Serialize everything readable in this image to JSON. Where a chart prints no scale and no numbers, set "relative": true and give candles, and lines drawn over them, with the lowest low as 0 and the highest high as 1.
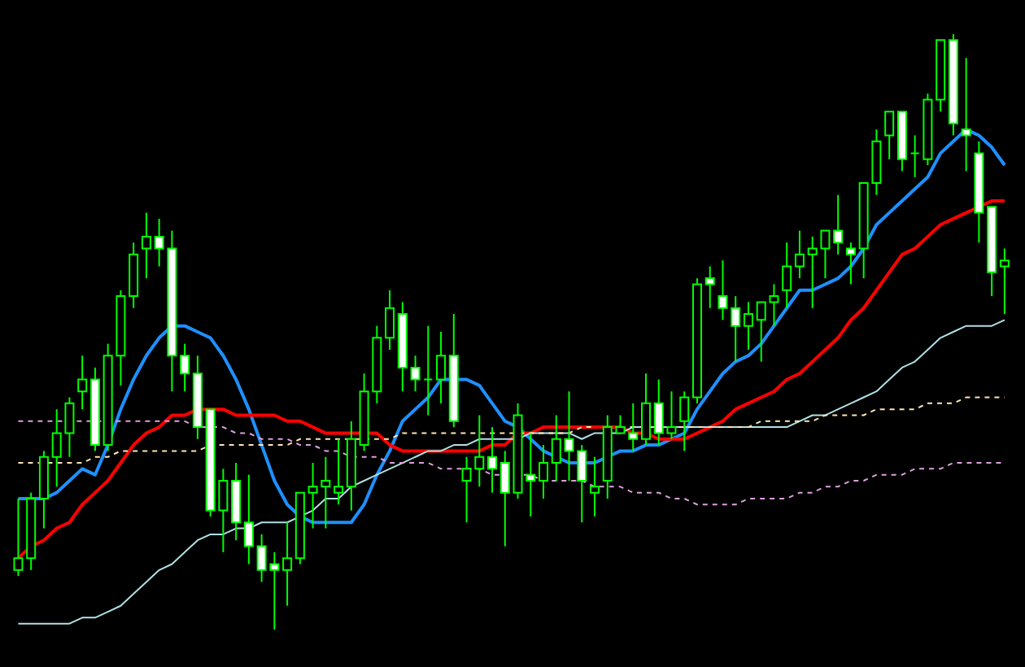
{
  "chart_data": {
    "type": "candlestick",
    "relative": true,
    "color": "#00ff00",
    "categories": [
      null,
      null,
      null,
      null,
      null,
      null,
      null,
      null,
      null,
      null,
      null,
      null,
      null,
      null,
      null,
      null,
      null,
      null,
      null,
      null,
      null,
      null,
      null,
      null,
      null,
      null,
      null,
      null,
      null,
      null,
      null,
      null,
      null,
      null,
      null,
      null,
      null,
      null,
      null,
      null,
      null,
      null,
      null,
      null,
      null,
      null,
      null,
      null,
      null,
      null,
      null,
      null,
      null,
      null,
      null,
      null,
      null,
      null,
      null,
      null,
      null,
      null,
      null,
      null,
      null,
      null,
      null,
      null,
      null,
      null,
      null,
      null,
      null,
      null,
      null,
      null,
      null,
      null
    ],
    "ohlc": [
      [
        0.1,
        0.22,
        0.09,
        0.12
      ],
      [
        0.12,
        0.23,
        0.1,
        0.22
      ],
      [
        0.22,
        0.3,
        0.17,
        0.29
      ],
      [
        0.29,
        0.37,
        0.24,
        0.33
      ],
      [
        0.33,
        0.39,
        0.29,
        0.38
      ],
      [
        0.4,
        0.46,
        0.37,
        0.42
      ],
      [
        0.42,
        0.44,
        0.3,
        0.31
      ],
      [
        0.31,
        0.48,
        0.3,
        0.46
      ],
      [
        0.46,
        0.57,
        0.41,
        0.56
      ],
      [
        0.56,
        0.65,
        0.54,
        0.63
      ],
      [
        0.64,
        0.7,
        0.59,
        0.66
      ],
      [
        0.66,
        0.69,
        0.61,
        0.64
      ],
      [
        0.64,
        0.67,
        0.4,
        0.46
      ],
      [
        0.46,
        0.48,
        0.4,
        0.43
      ],
      [
        0.43,
        0.46,
        0.32,
        0.34
      ],
      [
        0.37,
        0.37,
        0.19,
        0.2
      ],
      [
        0.2,
        0.27,
        0.13,
        0.25
      ],
      [
        0.25,
        0.28,
        0.15,
        0.18
      ],
      [
        0.18,
        0.26,
        0.11,
        0.14
      ],
      [
        0.14,
        0.16,
        0.08,
        0.1
      ],
      [
        0.11,
        0.13,
        0,
        0.1
      ],
      [
        0.1,
        0.18,
        0.04,
        0.12
      ],
      [
        0.12,
        0.23,
        0.11,
        0.23
      ],
      [
        0.23,
        0.28,
        0.17,
        0.24
      ],
      [
        0.24,
        0.29,
        0.17,
        0.25
      ],
      [
        0.23,
        0.32,
        0.21,
        0.24
      ],
      [
        0.24,
        0.35,
        0.2,
        0.32
      ],
      [
        0.31,
        0.43,
        0.3,
        0.4
      ],
      [
        0.4,
        0.51,
        0.38,
        0.49
      ],
      [
        0.49,
        0.57,
        0.47,
        0.54
      ],
      [
        0.53,
        0.55,
        0.4,
        0.44
      ],
      [
        0.44,
        0.46,
        0.4,
        0.42
      ],
      [
        0.42,
        0.51,
        0.36,
        0.42
      ],
      [
        0.42,
        0.5,
        0.38,
        0.46
      ],
      [
        0.46,
        0.53,
        0.34,
        0.35
      ],
      [
        0.25,
        0.29,
        0.18,
        0.27
      ],
      [
        0.27,
        0.36,
        0.24,
        0.29
      ],
      [
        0.29,
        0.34,
        0.23,
        0.27
      ],
      [
        0.28,
        0.3,
        0.14,
        0.23
      ],
      [
        0.23,
        0.38,
        0.22,
        0.36
      ],
      [
        0.26,
        0.33,
        0.19,
        0.25
      ],
      [
        0.25,
        0.31,
        0.22,
        0.28
      ],
      [
        0.28,
        0.36,
        0.25,
        0.32
      ],
      [
        0.32,
        0.4,
        0.25,
        0.3
      ],
      [
        0.3,
        0.31,
        0.18,
        0.25
      ],
      [
        0.23,
        0.29,
        0.19,
        0.24
      ],
      [
        0.25,
        0.36,
        0.22,
        0.34
      ],
      [
        0.33,
        0.36,
        0.33,
        0.34
      ],
      [
        0.33,
        0.38,
        0.3,
        0.32
      ],
      [
        0.32,
        0.43,
        0.31,
        0.38
      ],
      [
        0.38,
        0.42,
        0.31,
        0.33
      ],
      [
        0.33,
        0.4,
        0.32,
        0.34
      ],
      [
        0.35,
        0.4,
        0.3,
        0.39
      ],
      [
        0.39,
        0.59,
        0.38,
        0.58
      ],
      [
        0.59,
        0.61,
        0.54,
        0.58
      ],
      [
        0.56,
        0.62,
        0.52,
        0.54
      ],
      [
        0.54,
        0.56,
        0.45,
        0.51
      ],
      [
        0.51,
        0.55,
        0.47,
        0.53
      ],
      [
        0.52,
        0.55,
        0.45,
        0.55
      ],
      [
        0.55,
        0.58,
        0.51,
        0.56
      ],
      [
        0.57,
        0.65,
        0.54,
        0.61
      ],
      [
        0.61,
        0.67,
        0.59,
        0.63
      ],
      [
        0.63,
        0.66,
        0.54,
        0.64
      ],
      [
        0.64,
        0.67,
        0.59,
        0.67
      ],
      [
        0.67,
        0.73,
        0.63,
        0.65
      ],
      [
        0.64,
        0.65,
        0.58,
        0.63
      ],
      [
        0.64,
        0.75,
        0.59,
        0.75
      ],
      [
        0.75,
        0.84,
        0.73,
        0.82
      ],
      [
        0.83,
        0.87,
        0.79,
        0.87
      ],
      [
        0.87,
        0.87,
        0.77,
        0.79
      ],
      [
        0.8,
        0.83,
        0.76,
        0.8
      ],
      [
        0.79,
        0.9,
        0.78,
        0.89
      ],
      [
        0.89,
        0.99,
        0.87,
        0.99
      ],
      [
        0.99,
        1,
        0.83,
        0.85
      ],
      [
        0.84,
        0.96,
        0.77,
        0.83
      ],
      [
        0.8,
        0.82,
        0.65,
        0.7
      ],
      [
        0.71,
        0.71,
        0.56,
        0.6
      ],
      [
        0.61,
        0.64,
        0.53,
        0.62
      ]
    ],
    "series": [
      {
        "type": "line",
        "color": "#1e90ff",
        "line_style": "solid",
        "values": [
          0.22,
          0.22,
          0.22,
          0.23,
          0.25,
          0.27,
          0.26,
          0.31,
          0.37,
          0.42,
          0.46,
          0.49,
          0.51,
          0.51,
          0.5,
          0.49,
          0.46,
          0.42,
          0.37,
          0.31,
          0.25,
          0.21,
          0.19,
          0.18,
          0.18,
          0.18,
          0.18,
          0.21,
          0.26,
          0.3,
          0.35,
          0.37,
          0.39,
          0.42,
          0.42,
          0.42,
          0.41,
          0.38,
          0.35,
          0.34,
          0.32,
          0.3,
          0.29,
          0.28,
          0.28,
          0.28,
          0.29,
          0.3,
          0.3,
          0.31,
          0.31,
          0.32,
          0.33,
          0.37,
          0.4,
          0.43,
          0.45,
          0.46,
          0.48,
          0.51,
          0.54,
          0.57,
          0.57,
          0.58,
          0.59,
          0.61,
          0.64,
          0.68,
          0.7,
          0.72,
          0.74,
          0.76,
          0.8,
          0.82,
          0.84,
          0.83,
          0.81,
          0.78
        ]
      },
      {
        "type": "line",
        "color": "#ff0000",
        "line_style": "solid",
        "values": [
          0.12,
          0.14,
          0.15,
          0.17,
          0.18,
          0.21,
          0.23,
          0.25,
          0.28,
          0.31,
          0.33,
          0.34,
          0.36,
          0.36,
          0.37,
          0.37,
          0.37,
          0.36,
          0.36,
          0.36,
          0.36,
          0.35,
          0.35,
          0.34,
          0.33,
          0.33,
          0.33,
          0.33,
          0.33,
          0.31,
          0.3,
          0.3,
          0.3,
          0.3,
          0.3,
          0.3,
          0.3,
          0.31,
          0.31,
          0.33,
          0.33,
          0.34,
          0.34,
          0.34,
          0.34,
          0.34,
          0.34,
          0.34,
          0.33,
          0.33,
          0.32,
          0.32,
          0.32,
          0.33,
          0.34,
          0.35,
          0.37,
          0.38,
          0.39,
          0.4,
          0.42,
          0.43,
          0.45,
          0.47,
          0.49,
          0.52,
          0.54,
          0.57,
          0.6,
          0.63,
          0.64,
          0.66,
          0.68,
          0.69,
          0.7,
          0.71,
          0.72,
          0.72
        ]
      },
      {
        "type": "line",
        "color": "#b0e0e6",
        "line_style": "solid",
        "values": [
          0.01,
          0.01,
          0.01,
          0.01,
          0.01,
          0.02,
          0.02,
          0.03,
          0.04,
          0.06,
          0.08,
          0.1,
          0.11,
          0.13,
          0.15,
          0.16,
          0.16,
          0.17,
          0.17,
          0.18,
          0.18,
          0.18,
          0.19,
          0.2,
          0.22,
          0.22,
          0.24,
          0.25,
          0.26,
          0.27,
          0.28,
          0.29,
          0.3,
          0.3,
          0.31,
          0.31,
          0.32,
          0.32,
          0.32,
          0.32,
          0.33,
          0.33,
          0.33,
          0.33,
          0.32,
          0.33,
          0.33,
          0.33,
          0.34,
          0.34,
          0.34,
          0.34,
          0.34,
          0.34,
          0.34,
          0.34,
          0.34,
          0.34,
          0.34,
          0.34,
          0.34,
          0.35,
          0.36,
          0.36,
          0.37,
          0.38,
          0.39,
          0.4,
          0.42,
          0.44,
          0.45,
          0.47,
          0.49,
          0.5,
          0.51,
          0.51,
          0.51,
          0.52
        ]
      },
      {
        "type": "line",
        "color": "#ffe4b5",
        "line_style": "dashed",
        "values": [
          0.28,
          0.28,
          0.28,
          0.28,
          0.28,
          0.28,
          0.29,
          0.29,
          0.3,
          0.3,
          0.3,
          0.3,
          0.3,
          0.3,
          0.3,
          0.31,
          0.31,
          0.31,
          0.31,
          0.31,
          0.31,
          0.31,
          0.32,
          0.32,
          0.32,
          0.32,
          0.32,
          0.32,
          0.32,
          0.32,
          0.33,
          0.33,
          0.33,
          0.33,
          0.33,
          0.33,
          0.33,
          0.33,
          0.33,
          0.33,
          0.33,
          0.33,
          0.33,
          0.33,
          0.34,
          0.34,
          null,
          0.34,
          0.34,
          0.34,
          0.34,
          0.34,
          0.34,
          0.34,
          0.34,
          0.34,
          0.34,
          0.34,
          0.35,
          0.35,
          0.35,
          0.35,
          0.35,
          0.36,
          0.36,
          0.36,
          0.36,
          0.37,
          0.37,
          0.37,
          0.37,
          0.38,
          0.38,
          0.38,
          0.39,
          0.39,
          0.39,
          0.39
        ]
      },
      {
        "type": "line",
        "color": "#dda0dd",
        "line_style": "dashed",
        "values": [
          0.35,
          0.35,
          0.35,
          0.35,
          0.35,
          0.35,
          0.35,
          0.35,
          0.35,
          0.35,
          0.35,
          0.35,
          0.35,
          0.35,
          0.34,
          0.34,
          0.34,
          0.33,
          0.33,
          0.32,
          0.32,
          0.32,
          0.31,
          0.31,
          0.3,
          0.3,
          0.29,
          0.29,
          0.29,
          0.28,
          0.28,
          0.28,
          0.28,
          0.27,
          0.27,
          0.27,
          0.27,
          0.26,
          0.26,
          0.26,
          0.26,
          0.25,
          0.25,
          0.25,
          0.25,
          0.24,
          0.24,
          0.24,
          0.23,
          0.23,
          0.23,
          0.22,
          0.22,
          0.21,
          0.21,
          0.21,
          0.21,
          0.22,
          0.22,
          0.22,
          0.22,
          0.23,
          0.23,
          0.24,
          0.24,
          0.25,
          0.25,
          0.26,
          0.26,
          0.26,
          0.27,
          0.27,
          0.27,
          0.28,
          0.28,
          0.28,
          0.28,
          0.28
        ]
      }
    ]
  }
}
